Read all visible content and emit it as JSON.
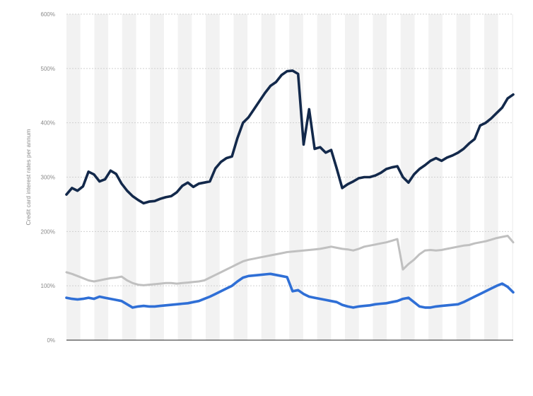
{
  "chart_data": {
    "type": "line",
    "title": "",
    "xlabel": "",
    "ylabel": "Credit card interest rates per annum",
    "ylim": [
      0,
      600
    ],
    "yticks": [
      0,
      100,
      200,
      300,
      400,
      500,
      600
    ],
    "ytick_labels": [
      "0%",
      "100%",
      "200%",
      "300%",
      "400%",
      "500%",
      "600%"
    ],
    "grid": true,
    "legend": "none",
    "x": [
      0,
      2,
      4,
      6,
      8,
      10,
      12,
      14,
      16,
      18,
      20,
      22,
      24,
      26,
      28,
      30,
      32,
      34,
      36,
      38,
      40,
      42,
      44,
      46,
      48,
      50,
      52,
      54,
      56,
      58,
      60,
      62,
      64,
      66,
      68,
      70,
      72,
      74,
      76,
      78,
      80,
      82,
      84,
      86,
      88,
      90,
      92,
      94,
      96,
      98,
      100,
      102,
      104,
      106,
      108,
      110,
      112,
      114,
      116,
      118,
      120,
      122,
      124,
      126,
      128,
      130,
      132,
      134,
      136,
      138,
      140,
      142,
      144,
      146,
      148,
      150,
      152,
      154,
      156,
      158,
      160,
      162
    ],
    "series": [
      {
        "color": "#13294b",
        "values": [
          268,
          280,
          275,
          283,
          310,
          305,
          292,
          296,
          312,
          306,
          288,
          275,
          265,
          258,
          252,
          255,
          256,
          260,
          263,
          265,
          272,
          284,
          290,
          282,
          288,
          290,
          292,
          316,
          328,
          335,
          338,
          372,
          400,
          410,
          425,
          440,
          455,
          468,
          475,
          488,
          495,
          496,
          490,
          360,
          425,
          352,
          355,
          345,
          350,
          316,
          280,
          287,
          292,
          298,
          300,
          300,
          303,
          308,
          315,
          318,
          320,
          300,
          290,
          305,
          315,
          322,
          330,
          335,
          330,
          336,
          340,
          345,
          352,
          362,
          370,
          395,
          400,
          408,
          418,
          428,
          445,
          452
        ]
      },
      {
        "color": "#c0c0c0",
        "values": [
          125,
          122,
          118,
          114,
          110,
          108,
          110,
          112,
          114,
          115,
          117,
          110,
          105,
          102,
          101,
          102,
          103,
          104,
          105,
          105,
          104,
          105,
          106,
          107,
          108,
          110,
          115,
          120,
          125,
          130,
          135,
          140,
          145,
          148,
          150,
          152,
          154,
          156,
          158,
          160,
          162,
          163,
          164,
          165,
          166,
          167,
          168,
          170,
          172,
          170,
          168,
          167,
          165,
          168,
          172,
          174,
          176,
          178,
          180,
          183,
          186,
          130,
          140,
          148,
          158,
          165,
          166,
          165,
          166,
          168,
          170,
          172,
          174,
          175,
          178,
          180,
          182,
          185,
          188,
          190,
          192,
          180
        ]
      },
      {
        "color": "#2f6fd6",
        "values": [
          78,
          76,
          75,
          76,
          78,
          76,
          80,
          78,
          76,
          74,
          72,
          66,
          60,
          62,
          63,
          62,
          62,
          63,
          64,
          65,
          66,
          67,
          68,
          70,
          72,
          76,
          80,
          85,
          90,
          95,
          100,
          108,
          115,
          118,
          119,
          120,
          121,
          122,
          120,
          118,
          116,
          90,
          92,
          85,
          80,
          78,
          76,
          74,
          72,
          70,
          65,
          62,
          60,
          62,
          63,
          64,
          66,
          67,
          68,
          70,
          72,
          76,
          78,
          70,
          62,
          60,
          60,
          62,
          63,
          64,
          65,
          66,
          70,
          75,
          80,
          85,
          90,
          95,
          100,
          104,
          98,
          88
        ]
      }
    ]
  }
}
